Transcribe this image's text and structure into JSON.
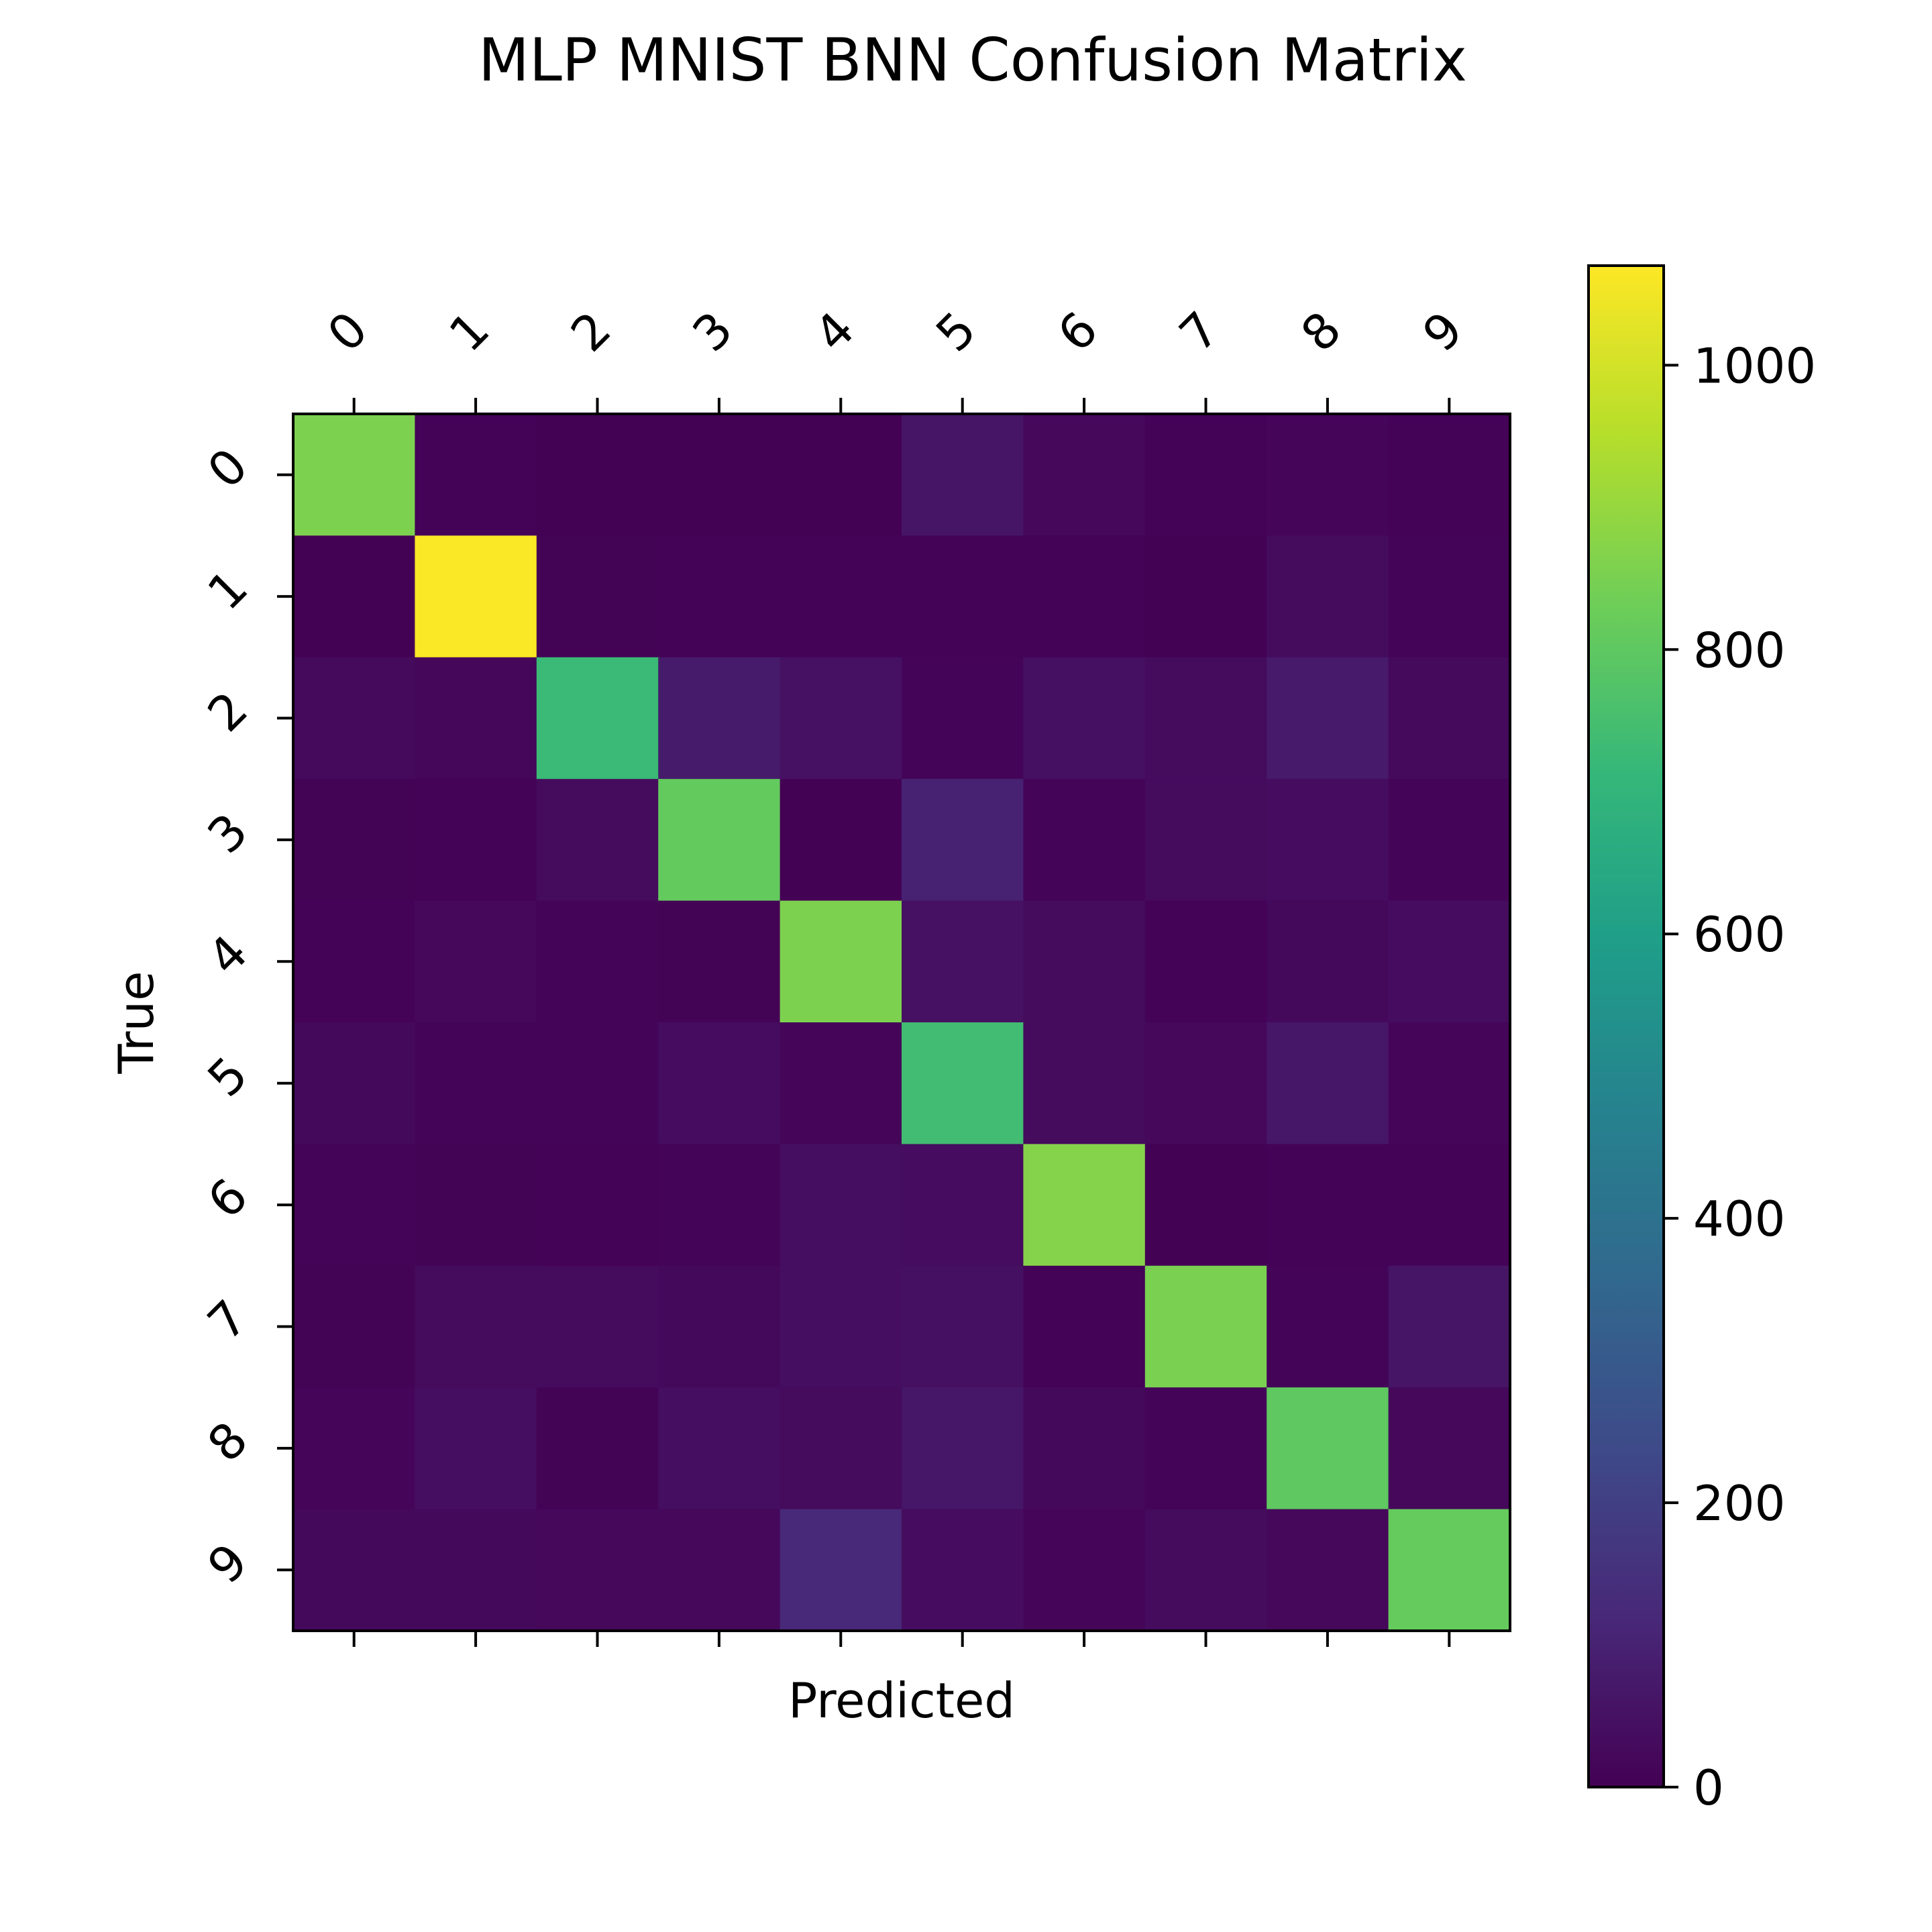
{
  "chart_data": {
    "type": "heatmap",
    "title": "MLP MNIST BNN Confusion Matrix",
    "xlabel": "Predicted",
    "ylabel": "True",
    "x_categories": [
      "0",
      "1",
      "2",
      "3",
      "4",
      "5",
      "6",
      "7",
      "8",
      "9"
    ],
    "y_categories": [
      "0",
      "1",
      "2",
      "3",
      "4",
      "5",
      "6",
      "7",
      "8",
      "9"
    ],
    "values": [
      [
        855,
        5,
        4,
        3,
        4,
        60,
        22,
        5,
        15,
        7
      ],
      [
        3,
        1065,
        8,
        7,
        7,
        6,
        7,
        3,
        30,
        9
      ],
      [
        27,
        18,
        725,
        80,
        48,
        12,
        45,
        30,
        75,
        27
      ],
      [
        8,
        5,
        30,
        810,
        3,
        100,
        10,
        30,
        35,
        12
      ],
      [
        7,
        20,
        10,
        8,
        855,
        48,
        30,
        6,
        25,
        35
      ],
      [
        25,
        12,
        12,
        35,
        15,
        740,
        30,
        22,
        65,
        15
      ],
      [
        10,
        8,
        7,
        10,
        40,
        35,
        870,
        4,
        5,
        5
      ],
      [
        8,
        30,
        30,
        25,
        40,
        45,
        5,
        850,
        10,
        60
      ],
      [
        15,
        40,
        8,
        40,
        30,
        65,
        25,
        12,
        800,
        20
      ],
      [
        25,
        25,
        20,
        20,
        120,
        35,
        15,
        30,
        20,
        815
      ]
    ],
    "colormap": "viridis",
    "vmin": 0,
    "vmax": 1070,
    "colorbar_ticks": [
      0,
      200,
      400,
      600,
      800,
      1000
    ]
  }
}
